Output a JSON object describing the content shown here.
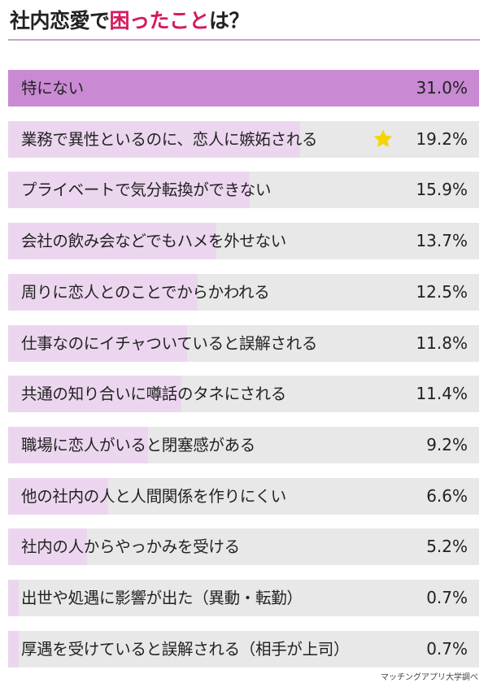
{
  "title": {
    "prefix": "社内恋愛で",
    "highlight": "困ったこと",
    "suffix": "は？"
  },
  "source": "マッチングアプリ大学調べ",
  "colors": {
    "highlight_text": "#d4195f",
    "top_bar": "#c98ad3",
    "bar": "#ecd6ef",
    "track": "#e8e8e8",
    "star": "#f5d400"
  },
  "chart_data": {
    "type": "bar",
    "orientation": "horizontal",
    "title": "社内恋愛で困ったことは？",
    "unit": "%",
    "categories": [
      "特にない",
      "業務で異性といるのに、恋人に嫉妬される",
      "プライベートで気分転換ができない",
      "会社の飲み会などでもハメを外せない",
      "周りに恋人とのことでからかわれる",
      "仕事なのにイチャついていると誤解される",
      "共通の知り合いに噂話のタネにされる",
      "職場に恋人がいると閉塞感がある",
      "他の社内の人と人間関係を作りにくい",
      "社内の人からやっかみを受ける",
      "出世や処遇に影響が出た（異動・転勤）",
      "厚遇を受けていると誤解される（相手が上司）"
    ],
    "values": [
      31.0,
      19.2,
      15.9,
      13.7,
      12.5,
      11.8,
      11.4,
      9.2,
      6.6,
      5.2,
      0.7,
      0.7
    ],
    "value_labels": [
      "31.0%",
      "19.2%",
      "15.9%",
      "13.7%",
      "12.5%",
      "11.8%",
      "11.4%",
      "9.2%",
      "6.6%",
      "5.2%",
      "0.7%",
      "0.7%"
    ],
    "max_value": 31.0,
    "starred_category": "業務で異性といるのに、恋人に嫉妬される",
    "grid": false
  }
}
